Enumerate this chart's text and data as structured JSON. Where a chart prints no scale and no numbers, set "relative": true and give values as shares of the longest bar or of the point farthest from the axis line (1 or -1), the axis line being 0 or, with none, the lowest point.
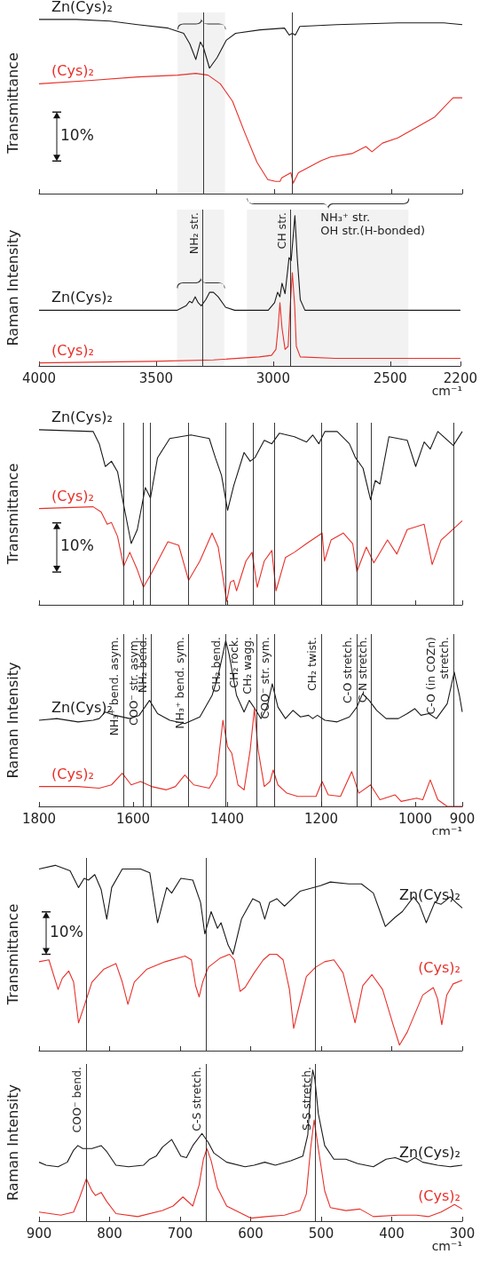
{
  "chart_data": [
    {
      "type": "line",
      "ylabel": "Transmittance",
      "relative": true,
      "xlim": [
        4000,
        2200
      ],
      "xticks": [
        4000,
        3500,
        3000,
        2500,
        2200
      ],
      "tick_labels": false,
      "annotations": [
        "10%"
      ],
      "series": [
        {
          "name": "Zn(Cys)₂",
          "color": "#1a1a1a",
          "x": [
            4000,
            3841,
            3698,
            3581,
            3451,
            3385,
            3359,
            3333,
            3314,
            3301,
            3275,
            3243,
            3204,
            3164,
            3060,
            2956,
            2936,
            2923,
            2910,
            2891,
            2734,
            2474,
            2278,
            2200
          ],
          "values": [
            1.0,
            1.0,
            0.99,
            0.97,
            0.95,
            0.92,
            0.86,
            0.77,
            0.87,
            0.84,
            0.72,
            0.78,
            0.88,
            0.92,
            0.94,
            0.95,
            0.91,
            0.92,
            0.91,
            0.96,
            0.97,
            0.98,
            0.98,
            0.97
          ]
        },
        {
          "name": "(Cys)₂",
          "color": "#e8302a",
          "x": [
            4000,
            3776,
            3581,
            3411,
            3333,
            3281,
            3229,
            3177,
            3125,
            3073,
            3027,
            2994,
            2975,
            2968,
            2929,
            2919,
            2897,
            2799,
            2760,
            2669,
            2610,
            2584,
            2539,
            2474,
            2395,
            2317,
            2239,
            2200
          ],
          "values": [
            0.63,
            0.65,
            0.67,
            0.68,
            0.69,
            0.68,
            0.63,
            0.53,
            0.35,
            0.18,
            0.08,
            0.07,
            0.07,
            0.09,
            0.12,
            0.06,
            0.12,
            0.19,
            0.21,
            0.23,
            0.27,
            0.24,
            0.29,
            0.32,
            0.38,
            0.44,
            0.55,
            0.55
          ]
        }
      ],
      "ref_lines": [
        {
          "axis": "x",
          "value": 3300
        },
        {
          "axis": "x",
          "value": 2923
        }
      ],
      "bands": [
        {
          "axis": "x",
          "from": 3411,
          "to": 3209
        }
      ]
    },
    {
      "type": "line",
      "ylabel": "Raman Intensity",
      "xlabel": "cm⁻¹",
      "relative": true,
      "xlim": [
        4000,
        2200
      ],
      "xticks": [
        4000,
        3500,
        3000,
        2500,
        2200
      ],
      "tick_labels": "x",
      "series": [
        {
          "name": "Zn(Cys)₂",
          "color": "#1a1a1a",
          "x": [
            4000,
            3646,
            3411,
            3372,
            3357,
            3346,
            3333,
            3320,
            3307,
            3288,
            3271,
            3255,
            3235,
            3203,
            3164,
            3021,
            2994,
            2981,
            2971,
            2962,
            2949,
            2932,
            2923,
            2907,
            2897,
            2884,
            2864,
            2604,
            2200
          ],
          "values": [
            0.37,
            0.37,
            0.37,
            0.4,
            0.43,
            0.42,
            0.46,
            0.42,
            0.4,
            0.44,
            0.49,
            0.49,
            0.46,
            0.39,
            0.37,
            0.37,
            0.42,
            0.49,
            0.46,
            0.55,
            0.48,
            0.72,
            0.7,
            1.0,
            0.72,
            0.44,
            0.37,
            0.37,
            0.37
          ]
        },
        {
          "name": "(Cys)₂",
          "color": "#e8302a",
          "x": [
            4000,
            3515,
            3255,
            3060,
            3007,
            2988,
            2979,
            2971,
            2962,
            2949,
            2936,
            2927,
            2918,
            2908,
            2901,
            2884,
            2734,
            2200
          ],
          "values": [
            0.02,
            0.03,
            0.04,
            0.06,
            0.07,
            0.11,
            0.25,
            0.42,
            0.25,
            0.11,
            0.13,
            0.4,
            0.62,
            0.4,
            0.13,
            0.06,
            0.05,
            0.05
          ]
        }
      ],
      "ref_lines": [
        {
          "axis": "x",
          "value": 3300,
          "label": "NH₂ str."
        },
        {
          "axis": "x",
          "value": 2925,
          "label": "CH str."
        }
      ],
      "bands": [
        {
          "axis": "x",
          "from": 3411,
          "to": 3209
        },
        {
          "axis": "x",
          "from": 3112,
          "to": 2422,
          "label": "NH₃⁺ str.\nOH str.(H-bonded)"
        }
      ]
    },
    {
      "type": "line",
      "ylabel": "Transmittance",
      "relative": true,
      "xlim": [
        1800,
        900
      ],
      "xticks": [
        1800,
        1600,
        1400,
        1200,
        1000,
        900
      ],
      "tick_labels": false,
      "annotations": [
        "10%"
      ],
      "series": [
        {
          "name": "Zn(Cys)₂",
          "color": "#1a1a1a",
          "x": [
            1800,
            1685,
            1672,
            1659,
            1646,
            1633,
            1620,
            1604,
            1591,
            1574,
            1563,
            1548,
            1522,
            1477,
            1438,
            1425,
            1412,
            1399,
            1386,
            1364,
            1351,
            1341,
            1321,
            1305,
            1289,
            1257,
            1231,
            1218,
            1205,
            1192,
            1166,
            1140,
            1127,
            1111,
            1095,
            1085,
            1075,
            1056,
            1017,
            999,
            981,
            968,
            952,
            919,
            900
          ],
          "values": [
            1.0,
            0.99,
            0.92,
            0.79,
            0.82,
            0.76,
            0.57,
            0.35,
            0.43,
            0.67,
            0.61,
            0.84,
            0.95,
            0.97,
            0.95,
            0.84,
            0.74,
            0.54,
            0.68,
            0.87,
            0.82,
            0.84,
            0.94,
            0.92,
            0.98,
            0.96,
            0.93,
            0.97,
            0.92,
            0.99,
            0.99,
            0.92,
            0.84,
            0.78,
            0.6,
            0.71,
            0.69,
            0.96,
            0.94,
            0.79,
            0.93,
            0.89,
            0.99,
            0.91,
            0.99
          ]
        },
        {
          "name": "(Cys)₂",
          "color": "#e8302a",
          "x": [
            1800,
            1685,
            1668,
            1655,
            1646,
            1633,
            1620,
            1607,
            1591,
            1578,
            1561,
            1526,
            1503,
            1482,
            1458,
            1432,
            1419,
            1401,
            1393,
            1386,
            1380,
            1360,
            1347,
            1336,
            1321,
            1305,
            1296,
            1276,
            1257,
            1231,
            1198,
            1193,
            1179,
            1153,
            1133,
            1124,
            1104,
            1088,
            1059,
            1039,
            1017,
            981,
            964,
            945,
            900
          ],
          "values": [
            0.55,
            0.56,
            0.53,
            0.46,
            0.47,
            0.39,
            0.22,
            0.3,
            0.2,
            0.1,
            0.18,
            0.36,
            0.34,
            0.14,
            0.25,
            0.41,
            0.33,
            0.02,
            0.13,
            0.14,
            0.08,
            0.25,
            0.3,
            0.1,
            0.25,
            0.31,
            0.08,
            0.27,
            0.3,
            0.35,
            0.41,
            0.25,
            0.37,
            0.41,
            0.35,
            0.19,
            0.33,
            0.24,
            0.37,
            0.29,
            0.43,
            0.46,
            0.23,
            0.37,
            0.48
          ]
        }
      ],
      "ref_lines": [
        {
          "axis": "x",
          "value": 1620
        },
        {
          "axis": "x",
          "value": 1578
        },
        {
          "axis": "x",
          "value": 1563
        },
        {
          "axis": "x",
          "value": 1482
        },
        {
          "axis": "x",
          "value": 1404
        },
        {
          "axis": "x",
          "value": 1345
        },
        {
          "axis": "x",
          "value": 1300
        },
        {
          "axis": "x",
          "value": 1200
        },
        {
          "axis": "x",
          "value": 1125
        },
        {
          "axis": "x",
          "value": 1093
        },
        {
          "axis": "x",
          "value": 919
        }
      ]
    },
    {
      "type": "line",
      "ylabel": "Raman Intensity",
      "xlabel": "cm⁻¹",
      "relative": true,
      "xlim": [
        1800,
        900
      ],
      "xticks": [
        1800,
        1600,
        1400,
        1200,
        1000,
        900
      ],
      "tick_labels": "x",
      "series": [
        {
          "name": "Zn(Cys)₂",
          "color": "#1a1a1a",
          "x": [
            1800,
            1762,
            1717,
            1685,
            1672,
            1659,
            1639,
            1607,
            1587,
            1565,
            1548,
            1522,
            1490,
            1458,
            1432,
            1419,
            1409,
            1403,
            1396,
            1380,
            1364,
            1353,
            1341,
            1328,
            1315,
            1304,
            1292,
            1276,
            1260,
            1244,
            1227,
            1218,
            1208,
            1192,
            1166,
            1140,
            1124,
            1112,
            1098,
            1082,
            1062,
            1036,
            1017,
            1001,
            988,
            971,
            955,
            932,
            917,
            906,
            900
          ],
          "values": [
            0.52,
            0.53,
            0.51,
            0.52,
            0.53,
            0.57,
            0.55,
            0.53,
            0.55,
            0.64,
            0.56,
            0.52,
            0.5,
            0.54,
            0.67,
            0.79,
            0.92,
            1.0,
            0.92,
            0.67,
            0.57,
            0.64,
            0.59,
            0.53,
            0.6,
            0.74,
            0.6,
            0.53,
            0.58,
            0.54,
            0.55,
            0.53,
            0.55,
            0.52,
            0.51,
            0.54,
            0.6,
            0.68,
            0.64,
            0.58,
            0.53,
            0.53,
            0.56,
            0.59,
            0.55,
            0.56,
            0.53,
            0.62,
            0.81,
            0.67,
            0.57
          ]
        },
        {
          "name": "(Cys)₂",
          "color": "#e8302a",
          "x": [
            1800,
            1717,
            1672,
            1646,
            1623,
            1604,
            1584,
            1561,
            1529,
            1510,
            1490,
            1471,
            1438,
            1422,
            1409,
            1399,
            1390,
            1377,
            1364,
            1351,
            1342,
            1334,
            1321,
            1309,
            1302,
            1292,
            1273,
            1250,
            1211,
            1198,
            1185,
            1159,
            1135,
            1120,
            1095,
            1075,
            1043,
            1030,
            997,
            984,
            968,
            952,
            932,
            900
          ],
          "values": [
            0.12,
            0.12,
            0.11,
            0.13,
            0.2,
            0.13,
            0.15,
            0.12,
            0.1,
            0.12,
            0.19,
            0.13,
            0.11,
            0.19,
            0.52,
            0.36,
            0.32,
            0.13,
            0.1,
            0.34,
            0.59,
            0.34,
            0.12,
            0.15,
            0.22,
            0.13,
            0.08,
            0.06,
            0.06,
            0.15,
            0.07,
            0.06,
            0.21,
            0.08,
            0.13,
            0.04,
            0.07,
            0.03,
            0.05,
            0.04,
            0.16,
            0.04,
            0.0,
            0.0
          ]
        }
      ],
      "ref_lines": [
        {
          "axis": "x",
          "value": 1620,
          "label": "NH₃⁺ bend. asym."
        },
        {
          "axis": "x",
          "value": 1579,
          "label": "COO⁻ str. asym."
        },
        {
          "axis": "x",
          "value": 1561,
          "label": "NH₂ bend."
        },
        {
          "axis": "x",
          "value": 1482,
          "label": "NH₃⁺ bend. sym."
        },
        {
          "axis": "x",
          "value": 1404,
          "label": "CH₂ bend."
        },
        {
          "axis": "x",
          "value": 1338,
          "label": "CH₂ rock.\nCH₂ wagg."
        },
        {
          "axis": "x",
          "value": 1300,
          "label": "COO⁻ str. sym."
        },
        {
          "axis": "x",
          "value": 1200,
          "label": "CH₂ twist."
        },
        {
          "axis": "x",
          "value": 1125,
          "label": "C-O stretch."
        },
        {
          "axis": "x",
          "value": 1093,
          "label": "C-N stretch."
        },
        {
          "axis": "x",
          "value": 919,
          "label": "C-O (in COZn)\nstretch."
        }
      ]
    },
    {
      "type": "line",
      "ylabel": "Transmittance",
      "relative": true,
      "xlim": [
        900,
        300
      ],
      "xticks": [
        900,
        800,
        700,
        600,
        500,
        400,
        300
      ],
      "tick_labels": false,
      "annotations": [
        "10%"
      ],
      "series": [
        {
          "name": "Zn(Cys)₂",
          "color": "#1a1a1a",
          "x": [
            900,
            877,
            856,
            844,
            836,
            830,
            821,
            812,
            804,
            797,
            782,
            756,
            743,
            732,
            719,
            712,
            699,
            682,
            671,
            665,
            656,
            647,
            642,
            632,
            625,
            613,
            597,
            587,
            580,
            573,
            563,
            552,
            530,
            501,
            487,
            461,
            443,
            426,
            409,
            395,
            385,
            369,
            361,
            351,
            339,
            330,
            317,
            309,
            300
          ],
          "values": [
            0.98,
            1.0,
            0.97,
            0.88,
            0.93,
            0.92,
            0.95,
            0.87,
            0.71,
            0.88,
            0.98,
            0.98,
            0.96,
            0.69,
            0.88,
            0.85,
            0.93,
            0.92,
            0.8,
            0.63,
            0.75,
            0.66,
            0.69,
            0.57,
            0.52,
            0.71,
            0.82,
            0.8,
            0.71,
            0.8,
            0.82,
            0.78,
            0.86,
            0.89,
            0.91,
            0.9,
            0.9,
            0.85,
            0.67,
            0.72,
            0.75,
            0.83,
            0.79,
            0.69,
            0.8,
            0.79,
            0.83,
            0.8,
            0.77
          ]
        },
        {
          "name": "(Cys)₂",
          "color": "#e8302a",
          "x": [
            900,
            886,
            873,
            867,
            858,
            851,
            844,
            836,
            825,
            808,
            791,
            782,
            774,
            765,
            747,
            721,
            693,
            684,
            678,
            673,
            668,
            660,
            643,
            630,
            623,
            615,
            608,
            595,
            582,
            573,
            563,
            554,
            545,
            539,
            530,
            521,
            508,
            495,
            482,
            469,
            452,
            441,
            428,
            413,
            398,
            389,
            378,
            356,
            341,
            335,
            329,
            322,
            313,
            300
          ],
          "values": [
            0.48,
            0.49,
            0.33,
            0.39,
            0.43,
            0.37,
            0.15,
            0.24,
            0.37,
            0.44,
            0.47,
            0.37,
            0.25,
            0.37,
            0.44,
            0.48,
            0.51,
            0.49,
            0.35,
            0.29,
            0.37,
            0.45,
            0.5,
            0.52,
            0.49,
            0.32,
            0.34,
            0.42,
            0.49,
            0.52,
            0.52,
            0.49,
            0.33,
            0.12,
            0.26,
            0.4,
            0.45,
            0.48,
            0.49,
            0.42,
            0.15,
            0.35,
            0.41,
            0.33,
            0.14,
            0.03,
            0.1,
            0.3,
            0.34,
            0.28,
            0.14,
            0.3,
            0.36,
            0.38
          ]
        }
      ],
      "ref_lines": [
        {
          "axis": "x",
          "value": 833
        },
        {
          "axis": "x",
          "value": 663
        },
        {
          "axis": "x",
          "value": 508
        }
      ]
    },
    {
      "type": "line",
      "ylabel": "Raman Intensity",
      "xlabel": "cm⁻¹",
      "relative": true,
      "xlim": [
        900,
        300
      ],
      "xticks": [
        900,
        800,
        700,
        600,
        500,
        400,
        300
      ],
      "tick_labels": "x",
      "series": [
        {
          "name": "Zn(Cys)₂",
          "color": "#1a1a1a",
          "x": [
            900,
            890,
            873,
            860,
            851,
            845,
            838,
            825,
            812,
            804,
            791,
            773,
            752,
            743,
            734,
            725,
            712,
            699,
            691,
            682,
            669,
            660,
            652,
            634,
            608,
            595,
            580,
            565,
            543,
            526,
            519,
            515,
            512,
            509,
            504,
            495,
            482,
            465,
            448,
            426,
            408,
            395,
            378,
            367,
            356,
            335,
            317,
            300
          ],
          "values": [
            0.39,
            0.37,
            0.36,
            0.39,
            0.47,
            0.5,
            0.48,
            0.48,
            0.5,
            0.46,
            0.37,
            0.36,
            0.37,
            0.41,
            0.43,
            0.49,
            0.54,
            0.43,
            0.42,
            0.5,
            0.58,
            0.52,
            0.45,
            0.39,
            0.36,
            0.37,
            0.39,
            0.37,
            0.4,
            0.43,
            0.57,
            0.86,
            1.0,
            0.94,
            0.71,
            0.5,
            0.41,
            0.41,
            0.38,
            0.36,
            0.41,
            0.42,
            0.39,
            0.42,
            0.39,
            0.37,
            0.36,
            0.37
          ]
        },
        {
          "name": "(Cys)₂",
          "color": "#e8302a",
          "x": [
            900,
            869,
            851,
            843,
            833,
            825,
            820,
            812,
            804,
            791,
            760,
            725,
            710,
            696,
            682,
            673,
            667,
            662,
            656,
            647,
            634,
            617,
            600,
            578,
            552,
            530,
            521,
            515,
            510,
            504,
            495,
            487,
            465,
            445,
            426,
            391,
            365,
            348,
            330,
            311,
            300
          ],
          "values": [
            0.06,
            0.04,
            0.06,
            0.15,
            0.28,
            0.2,
            0.17,
            0.19,
            0.13,
            0.05,
            0.03,
            0.07,
            0.1,
            0.16,
            0.1,
            0.24,
            0.41,
            0.48,
            0.4,
            0.22,
            0.1,
            0.06,
            0.02,
            0.03,
            0.04,
            0.07,
            0.18,
            0.48,
            0.67,
            0.48,
            0.2,
            0.09,
            0.07,
            0.08,
            0.03,
            0.04,
            0.04,
            0.03,
            0.06,
            0.11,
            0.08
          ]
        }
      ],
      "ref_lines": [
        {
          "axis": "x",
          "value": 833,
          "label": "COO⁻ bend."
        },
        {
          "axis": "x",
          "value": 663,
          "label": "C-S stretch."
        },
        {
          "axis": "x",
          "value": 508,
          "label": "S-S stretch."
        }
      ]
    }
  ]
}
